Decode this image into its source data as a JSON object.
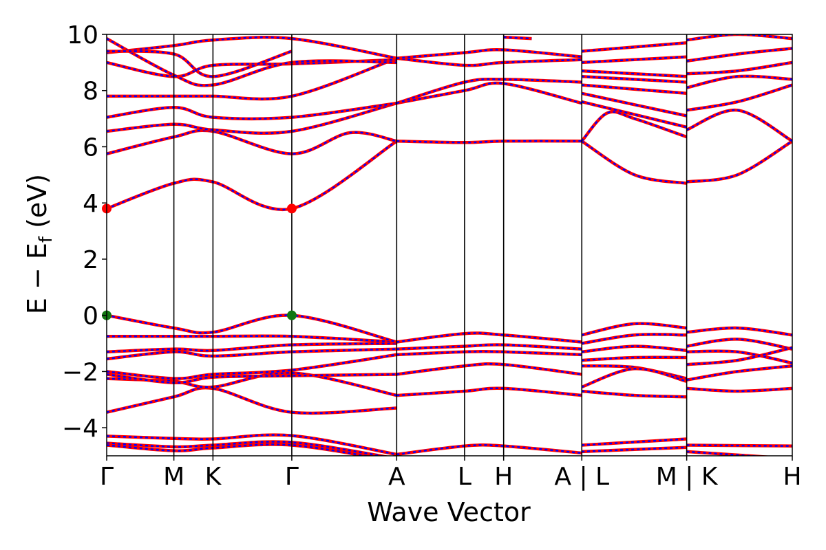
{
  "chart_data": {
    "type": "line",
    "title": "",
    "xlabel": "Wave Vector",
    "ylabel_main": "E − E",
    "ylabel_sub": "f",
    "ylabel_unit": " (eV)",
    "ylim": [
      -5,
      10
    ],
    "xlim": [
      0,
      1
    ],
    "y_ticks": [
      -4,
      -2,
      0,
      2,
      4,
      6,
      8,
      10
    ],
    "y_tick_labels": [
      "−4",
      "−2",
      "0",
      "2",
      "4",
      "6",
      "8",
      "10"
    ],
    "kpoints": [
      {
        "label": "Γ",
        "x": 0.0
      },
      {
        "label": "M",
        "x": 0.098
      },
      {
        "label": "K",
        "x": 0.155
      },
      {
        "label": "Γ",
        "x": 0.27
      },
      {
        "label": "A",
        "x": 0.423
      },
      {
        "label": "L",
        "x": 0.522
      },
      {
        "label": "H",
        "x": 0.579
      },
      {
        "label": "A | L",
        "x": 0.693
      },
      {
        "label": "M | K",
        "x": 0.846
      },
      {
        "label": "H",
        "x": 1.0
      }
    ],
    "band_colors": {
      "solid": "#ff0000",
      "dashed": "#0000ff"
    },
    "special_points": [
      {
        "x": 0.0,
        "y": 3.8,
        "color": "#ff0000",
        "kind": "CBM"
      },
      {
        "x": 0.27,
        "y": 3.8,
        "color": "#ff0000",
        "kind": "CBM"
      },
      {
        "x": 0.0,
        "y": 0.0,
        "color": "#117711",
        "kind": "VBM"
      },
      {
        "x": 0.27,
        "y": 0.0,
        "color": "#117711",
        "kind": "VBM"
      }
    ],
    "bands": [
      [
        [
          0.0,
          -4.3
        ],
        [
          0.098,
          -4.38
        ],
        [
          0.155,
          -4.4
        ],
        [
          0.27,
          -4.28
        ],
        [
          0.423,
          -4.95
        ]
      ],
      [
        [
          0.0,
          -4.55
        ],
        [
          0.098,
          -4.68
        ],
        [
          0.155,
          -4.62
        ],
        [
          0.27,
          -4.52
        ],
        [
          0.423,
          -5.1
        ]
      ],
      [
        [
          0.0,
          -4.62
        ],
        [
          0.098,
          -4.82
        ],
        [
          0.155,
          -4.72
        ],
        [
          0.27,
          -4.62
        ],
        [
          0.423,
          -5.2
        ]
      ],
      [
        [
          0.423,
          -4.95
        ],
        [
          0.522,
          -4.65
        ],
        [
          0.579,
          -4.65
        ],
        [
          0.693,
          -4.9
        ]
      ],
      [
        [
          0.693,
          -4.62
        ],
        [
          0.846,
          -4.4
        ]
      ],
      [
        [
          0.693,
          -4.85
        ],
        [
          0.846,
          -4.7
        ]
      ],
      [
        [
          0.846,
          -4.62
        ],
        [
          1.0,
          -4.65
        ]
      ],
      [
        [
          0.846,
          -4.85
        ],
        [
          1.0,
          -5.1
        ]
      ],
      [
        [
          0.0,
          -3.45
        ],
        [
          0.098,
          -2.9
        ],
        [
          0.155,
          -2.6
        ],
        [
          0.27,
          -3.45
        ],
        [
          0.423,
          -3.3
        ]
      ],
      [
        [
          0.0,
          -2.25
        ],
        [
          0.098,
          -2.35
        ],
        [
          0.155,
          -2.55
        ],
        [
          0.27,
          -2.05
        ],
        [
          0.423,
          -2.85
        ]
      ],
      [
        [
          0.0,
          -2.1
        ],
        [
          0.098,
          -2.4
        ],
        [
          0.155,
          -2.2
        ],
        [
          0.27,
          -2.15
        ],
        [
          0.423,
          -2.1
        ]
      ],
      [
        [
          0.0,
          -2.0
        ],
        [
          0.098,
          -2.25
        ],
        [
          0.155,
          -2.1
        ],
        [
          0.27,
          -1.95
        ],
        [
          0.423,
          -1.4
        ]
      ],
      [
        [
          0.0,
          -1.55
        ],
        [
          0.098,
          -1.3
        ],
        [
          0.155,
          -1.45
        ],
        [
          0.27,
          -1.3
        ],
        [
          0.423,
          -1.2
        ]
      ],
      [
        [
          0.0,
          -1.3
        ],
        [
          0.098,
          -1.2
        ],
        [
          0.155,
          -1.25
        ],
        [
          0.27,
          -1.05
        ],
        [
          0.423,
          -1.0
        ]
      ],
      [
        [
          0.0,
          -0.75
        ],
        [
          0.098,
          -0.75
        ],
        [
          0.155,
          -0.75
        ],
        [
          0.27,
          -0.75
        ],
        [
          0.423,
          -0.95
        ]
      ],
      [
        [
          0.0,
          0.0
        ],
        [
          0.098,
          -0.45
        ],
        [
          0.155,
          -0.6
        ],
        [
          0.27,
          0.0
        ],
        [
          0.423,
          -0.95
        ]
      ],
      [
        [
          0.423,
          -0.95
        ],
        [
          0.522,
          -0.65
        ],
        [
          0.579,
          -0.7
        ],
        [
          0.693,
          -0.95
        ]
      ],
      [
        [
          0.423,
          -1.2
        ],
        [
          0.522,
          -1.1
        ],
        [
          0.579,
          -1.05
        ],
        [
          0.693,
          -1.2
        ]
      ],
      [
        [
          0.423,
          -1.4
        ],
        [
          0.522,
          -1.3
        ],
        [
          0.579,
          -1.3
        ],
        [
          0.693,
          -1.4
        ]
      ],
      [
        [
          0.423,
          -2.1
        ],
        [
          0.522,
          -1.8
        ],
        [
          0.579,
          -1.75
        ],
        [
          0.693,
          -2.1
        ]
      ],
      [
        [
          0.423,
          -2.85
        ],
        [
          0.522,
          -2.7
        ],
        [
          0.579,
          -2.6
        ],
        [
          0.693,
          -2.85
        ]
      ],
      [
        [
          0.693,
          -0.7
        ],
        [
          0.77,
          -0.3
        ],
        [
          0.846,
          -0.45
        ]
      ],
      [
        [
          0.693,
          -1.0
        ],
        [
          0.77,
          -0.7
        ],
        [
          0.846,
          -0.7
        ]
      ],
      [
        [
          0.693,
          -1.3
        ],
        [
          0.77,
          -1.1
        ],
        [
          0.846,
          -1.25
        ]
      ],
      [
        [
          0.693,
          -1.6
        ],
        [
          0.77,
          -1.5
        ],
        [
          0.846,
          -1.5
        ]
      ],
      [
        [
          0.693,
          -1.8
        ],
        [
          0.77,
          -1.85
        ],
        [
          0.846,
          -2.25
        ]
      ],
      [
        [
          0.693,
          -2.55
        ],
        [
          0.77,
          -1.9
        ],
        [
          0.846,
          -2.35
        ]
      ],
      [
        [
          0.693,
          -2.7
        ],
        [
          0.77,
          -2.85
        ],
        [
          0.846,
          -2.9
        ]
      ],
      [
        [
          0.846,
          -0.6
        ],
        [
          0.92,
          -0.45
        ],
        [
          1.0,
          -0.7
        ]
      ],
      [
        [
          0.846,
          -1.1
        ],
        [
          0.92,
          -0.85
        ],
        [
          1.0,
          -1.2
        ]
      ],
      [
        [
          0.846,
          -1.3
        ],
        [
          0.92,
          -1.3
        ],
        [
          1.0,
          -1.7
        ]
      ],
      [
        [
          0.846,
          -1.75
        ],
        [
          0.92,
          -1.6
        ],
        [
          1.0,
          -1.15
        ]
      ],
      [
        [
          0.846,
          -2.6
        ],
        [
          0.92,
          -2.7
        ],
        [
          1.0,
          -2.6
        ]
      ],
      [
        [
          0.846,
          -2.3
        ],
        [
          0.92,
          -2.0
        ],
        [
          1.0,
          -1.8
        ]
      ],
      [
        [
          0.0,
          3.8
        ],
        [
          0.098,
          4.7
        ],
        [
          0.155,
          4.75
        ],
        [
          0.27,
          3.8
        ],
        [
          0.423,
          6.2
        ]
      ],
      [
        [
          0.423,
          6.2
        ],
        [
          0.522,
          6.15
        ],
        [
          0.579,
          6.2
        ],
        [
          0.693,
          6.2
        ]
      ],
      [
        [
          0.0,
          5.75
        ],
        [
          0.098,
          6.35
        ],
        [
          0.155,
          6.55
        ],
        [
          0.27,
          5.75
        ],
        [
          0.355,
          6.5
        ],
        [
          0.423,
          6.2
        ]
      ],
      [
        [
          0.0,
          6.55
        ],
        [
          0.098,
          6.8
        ],
        [
          0.155,
          6.6
        ],
        [
          0.27,
          6.55
        ],
        [
          0.423,
          7.55
        ]
      ],
      [
        [
          0.0,
          7.05
        ],
        [
          0.098,
          7.4
        ],
        [
          0.155,
          7.05
        ],
        [
          0.27,
          7.05
        ],
        [
          0.423,
          7.55
        ]
      ],
      [
        [
          0.0,
          7.8
        ],
        [
          0.098,
          7.8
        ],
        [
          0.155,
          7.8
        ],
        [
          0.27,
          7.8
        ],
        [
          0.423,
          9.15
        ]
      ],
      [
        [
          0.0,
          9.0
        ],
        [
          0.098,
          8.5
        ],
        [
          0.155,
          8.9
        ],
        [
          0.27,
          8.95
        ],
        [
          0.423,
          9.1
        ]
      ],
      [
        [
          0.0,
          9.35
        ],
        [
          0.098,
          9.6
        ],
        [
          0.155,
          9.8
        ],
        [
          0.27,
          9.85
        ],
        [
          0.423,
          9.15
        ]
      ],
      [
        [
          0.0,
          9.85
        ],
        [
          0.098,
          8.55
        ],
        [
          0.155,
          8.2
        ],
        [
          0.27,
          9.0
        ],
        [
          0.423,
          9.0
        ]
      ],
      [
        [
          0.0,
          9.4
        ],
        [
          0.098,
          9.3
        ],
        [
          0.155,
          8.5
        ],
        [
          0.27,
          9.4
        ]
      ],
      [
        [
          0.423,
          7.55
        ],
        [
          0.522,
          8.0
        ],
        [
          0.579,
          8.25
        ],
        [
          0.693,
          7.55
        ]
      ],
      [
        [
          0.423,
          7.55
        ],
        [
          0.522,
          8.3
        ],
        [
          0.579,
          8.4
        ],
        [
          0.693,
          8.3
        ]
      ],
      [
        [
          0.423,
          9.15
        ],
        [
          0.522,
          8.9
        ],
        [
          0.579,
          9.0
        ],
        [
          0.693,
          9.1
        ]
      ],
      [
        [
          0.423,
          9.15
        ],
        [
          0.522,
          9.35
        ],
        [
          0.579,
          9.45
        ],
        [
          0.693,
          9.2
        ]
      ],
      [
        [
          0.579,
          9.9
        ],
        [
          0.62,
          9.85
        ]
      ],
      [
        [
          0.693,
          6.2
        ],
        [
          0.77,
          5.0
        ],
        [
          0.846,
          4.7
        ]
      ],
      [
        [
          0.693,
          6.2
        ],
        [
          0.73,
          7.2
        ],
        [
          0.77,
          7.0
        ],
        [
          0.846,
          6.35
        ]
      ],
      [
        [
          0.693,
          7.6
        ],
        [
          0.846,
          6.7
        ]
      ],
      [
        [
          0.693,
          7.9
        ],
        [
          0.846,
          7.1
        ]
      ],
      [
        [
          0.693,
          8.2
        ],
        [
          0.846,
          7.9
        ]
      ],
      [
        [
          0.693,
          8.5
        ],
        [
          0.846,
          8.3
        ]
      ],
      [
        [
          0.693,
          8.7
        ],
        [
          0.846,
          8.5
        ]
      ],
      [
        [
          0.693,
          9.4
        ],
        [
          0.846,
          9.7
        ]
      ],
      [
        [
          0.693,
          9.0
        ],
        [
          0.846,
          9.2
        ]
      ],
      [
        [
          0.846,
          4.75
        ],
        [
          0.92,
          5.0
        ],
        [
          1.0,
          6.2
        ]
      ],
      [
        [
          0.846,
          6.6
        ],
        [
          0.92,
          7.3
        ],
        [
          1.0,
          6.2
        ]
      ],
      [
        [
          0.846,
          7.3
        ],
        [
          0.92,
          7.6
        ],
        [
          1.0,
          8.2
        ]
      ],
      [
        [
          0.846,
          8.1
        ],
        [
          0.92,
          8.5
        ],
        [
          1.0,
          8.4
        ]
      ],
      [
        [
          0.846,
          8.6
        ],
        [
          0.92,
          8.7
        ],
        [
          1.0,
          9.0
        ]
      ],
      [
        [
          0.846,
          9.05
        ],
        [
          0.92,
          9.3
        ],
        [
          1.0,
          9.5
        ]
      ],
      [
        [
          0.846,
          9.8
        ],
        [
          0.92,
          10.0
        ],
        [
          1.0,
          9.85
        ]
      ]
    ]
  }
}
